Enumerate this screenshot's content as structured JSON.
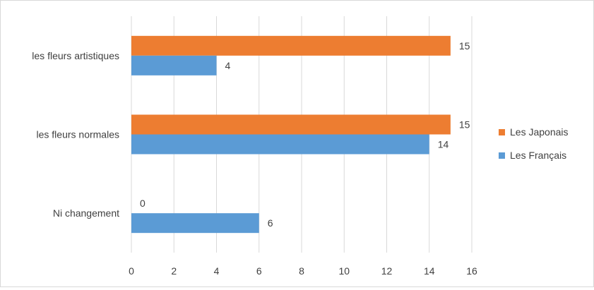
{
  "chart_data": {
    "type": "bar",
    "orientation": "horizontal",
    "categories": [
      "les fleurs artistiques",
      "les fleurs normales",
      "Ni changement"
    ],
    "series": [
      {
        "name": "Les Japonais",
        "color": "#ed7d31",
        "values": [
          15,
          15,
          0
        ]
      },
      {
        "name": "Les Français",
        "color": "#5b9bd5",
        "values": [
          4,
          14,
          6
        ]
      }
    ],
    "xlim": [
      0,
      16
    ],
    "x_ticks": [
      "0",
      "2",
      "4",
      "6",
      "8",
      "10",
      "12",
      "14",
      "16"
    ],
    "grid": "vertical",
    "legend_position": "right",
    "data_labels": true
  }
}
